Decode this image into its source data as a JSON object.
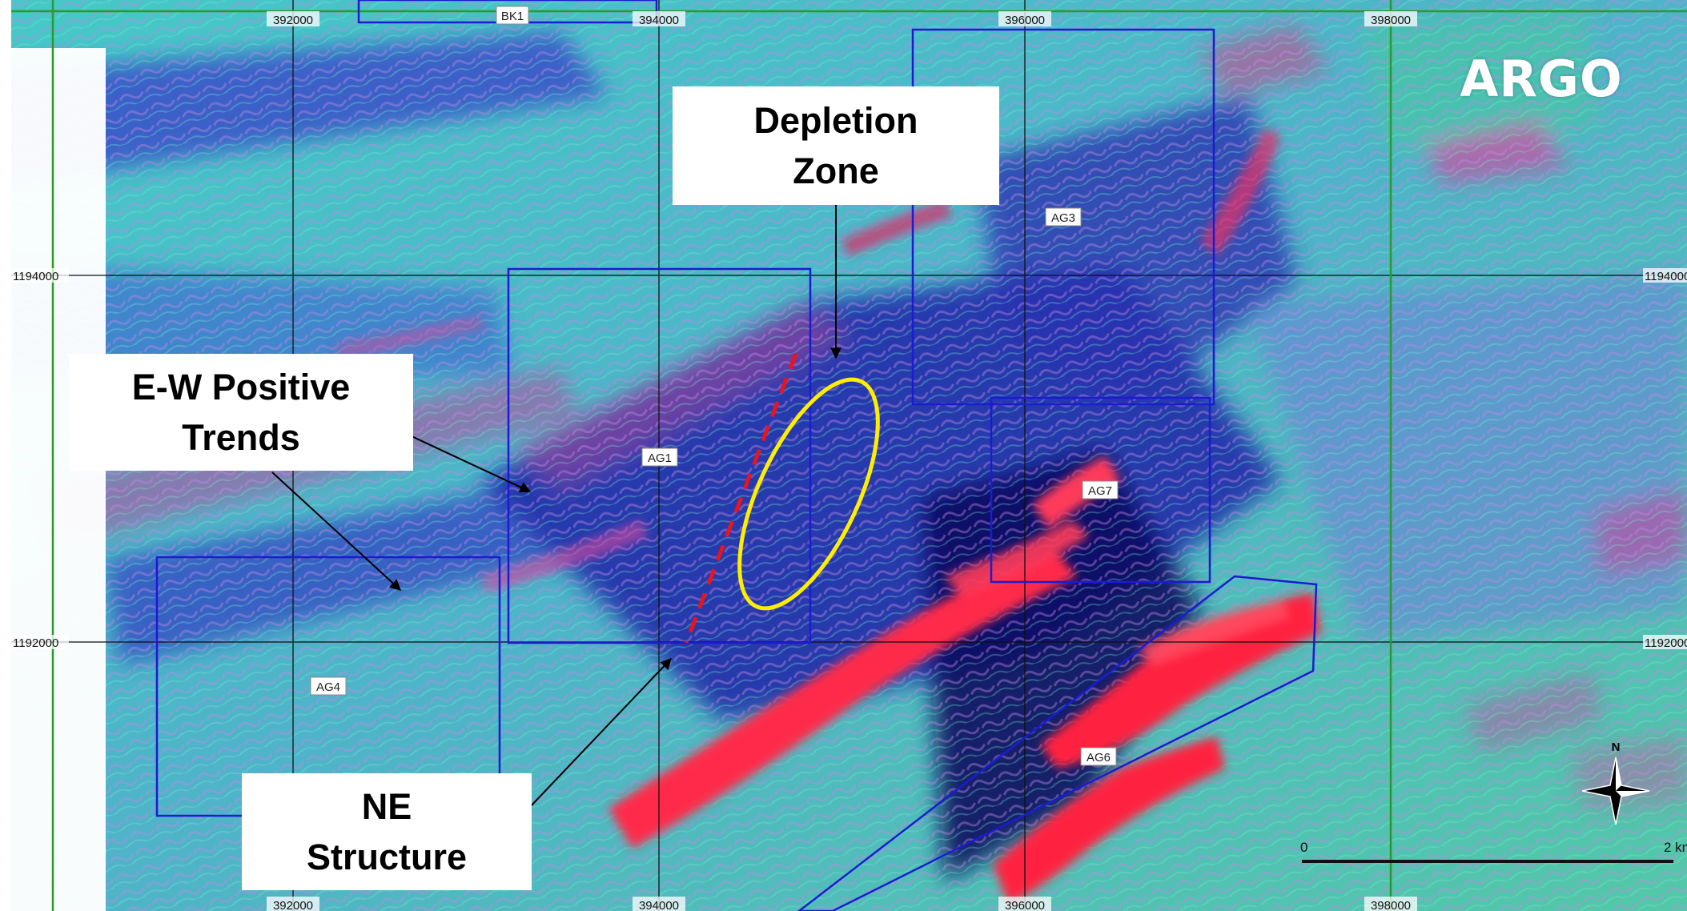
{
  "logo": "ARGO",
  "grid": {
    "eastings": [
      "392000",
      "394000",
      "396000",
      "398000"
    ],
    "northings": [
      "1194000",
      "1192000"
    ]
  },
  "blocks": [
    "BK1",
    "AG3",
    "AG1",
    "AG7",
    "AG4",
    "AG6"
  ],
  "callouts": {
    "depletion_zone": [
      "Depletion",
      "Zone"
    ],
    "ew_trends": [
      "E-W Positive",
      "Trends"
    ],
    "ne_structure": [
      "NE",
      "Structure"
    ]
  },
  "north_arrow": "N",
  "scale_bar": {
    "start": "0",
    "end": "2 km"
  },
  "colors": {
    "high_anomaly": "#ff2a4a",
    "low_anomaly": "#1a1e96",
    "mid": "#37d6b4",
    "block_outline": "#1b1bd2",
    "depletion_ellipse": "#ffee00",
    "ne_structure_line": "#e8141e"
  }
}
